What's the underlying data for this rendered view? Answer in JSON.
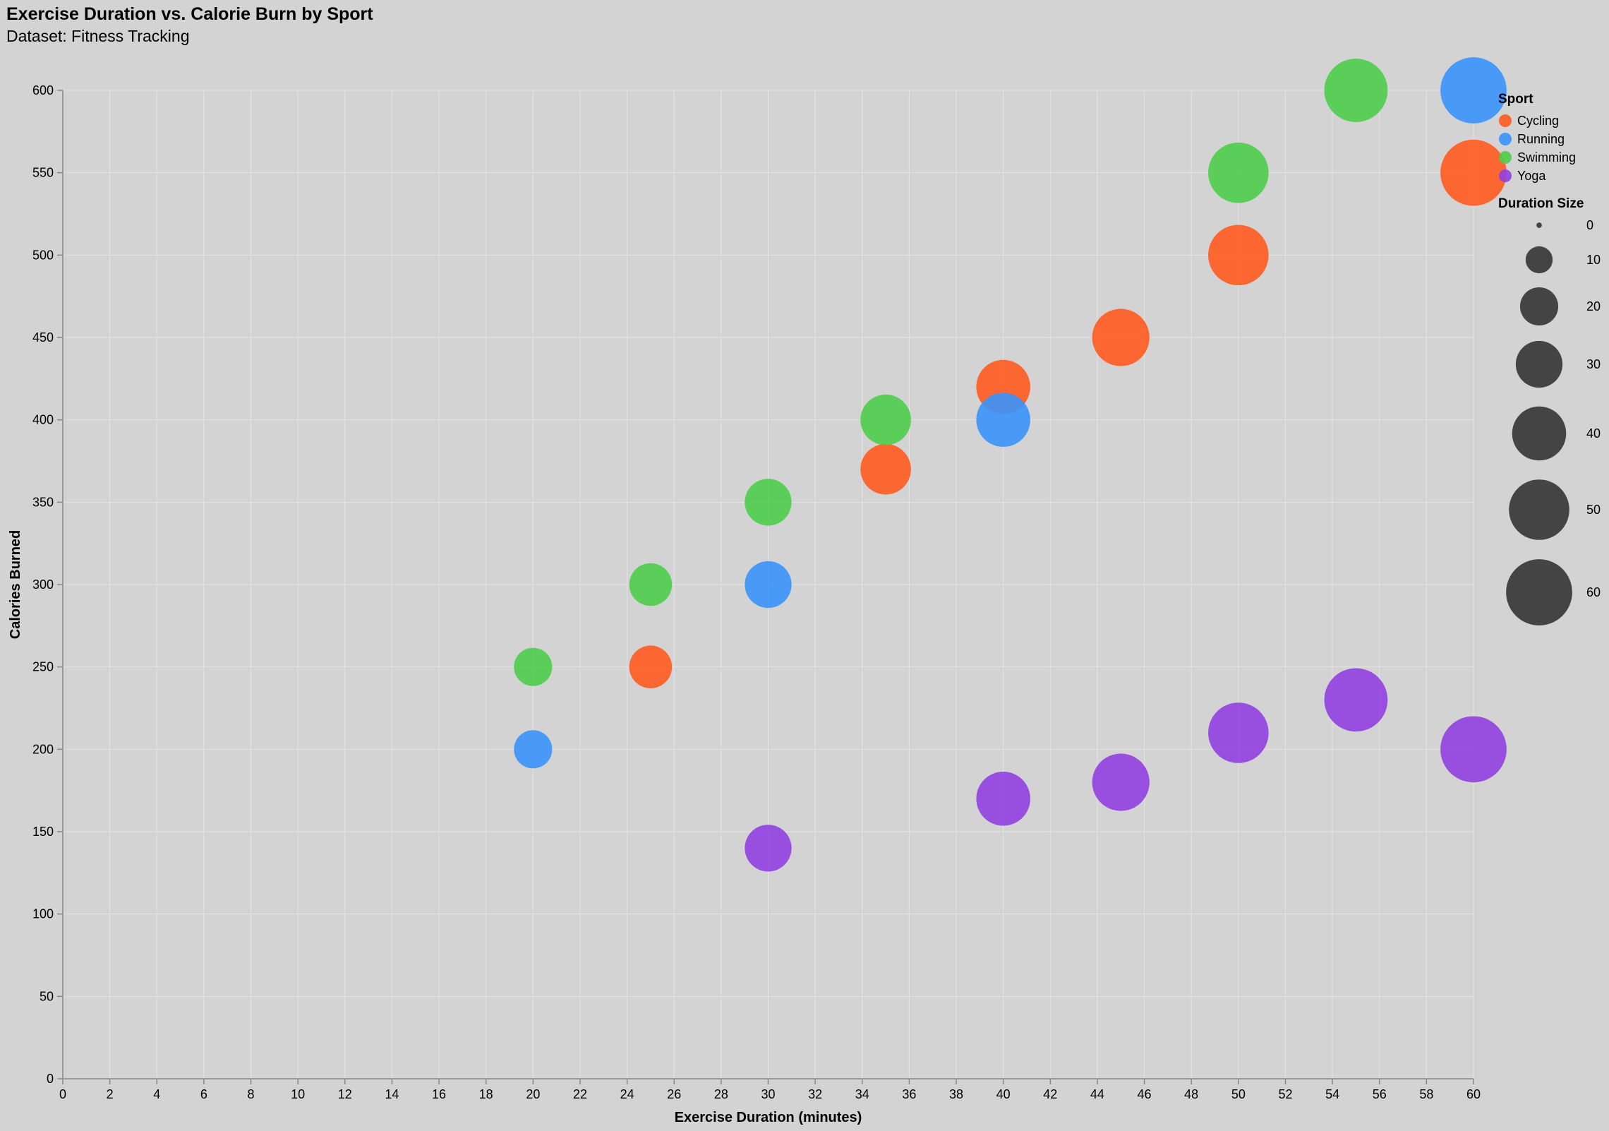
{
  "chart_data": {
    "type": "scatter",
    "title": "Exercise Duration vs. Calorie Burn by Sport",
    "subtitle": "Dataset: Fitness Tracking",
    "xlabel": "Exercise Duration (minutes)",
    "ylabel": "Calories Burned",
    "xlim": [
      0,
      60
    ],
    "ylim": [
      0,
      600
    ],
    "x_ticks": [
      0,
      2,
      4,
      6,
      8,
      10,
      12,
      14,
      16,
      18,
      20,
      22,
      24,
      26,
      28,
      30,
      32,
      34,
      36,
      38,
      40,
      42,
      44,
      46,
      48,
      50,
      52,
      54,
      56,
      58,
      60
    ],
    "y_ticks": [
      0,
      50,
      100,
      150,
      200,
      250,
      300,
      350,
      400,
      450,
      500,
      550,
      600
    ],
    "grid": true,
    "legend_position": "right",
    "color_legend_title": "Sport",
    "size_legend_title": "Duration Size",
    "size_legend_values": [
      0,
      10,
      20,
      30,
      40,
      50,
      60
    ],
    "series": [
      {
        "name": "Cycling",
        "color": "#ff5a1f",
        "points": [
          {
            "x": 25,
            "y": 250,
            "size": 25
          },
          {
            "x": 35,
            "y": 370,
            "size": 35
          },
          {
            "x": 40,
            "y": 420,
            "size": 40
          },
          {
            "x": 45,
            "y": 450,
            "size": 45
          },
          {
            "x": 50,
            "y": 500,
            "size": 50
          },
          {
            "x": 60,
            "y": 550,
            "size": 60
          }
        ]
      },
      {
        "name": "Running",
        "color": "#3a92fb",
        "points": [
          {
            "x": 20,
            "y": 200,
            "size": 20
          },
          {
            "x": 30,
            "y": 300,
            "size": 30
          },
          {
            "x": 40,
            "y": 400,
            "size": 40
          },
          {
            "x": 60,
            "y": 600,
            "size": 60
          }
        ]
      },
      {
        "name": "Swimming",
        "color": "#4ccd4a",
        "points": [
          {
            "x": 20,
            "y": 250,
            "size": 20
          },
          {
            "x": 25,
            "y": 300,
            "size": 25
          },
          {
            "x": 30,
            "y": 350,
            "size": 30
          },
          {
            "x": 35,
            "y": 400,
            "size": 35
          },
          {
            "x": 50,
            "y": 550,
            "size": 50
          },
          {
            "x": 55,
            "y": 600,
            "size": 55
          }
        ]
      },
      {
        "name": "Yoga",
        "color": "#9140e0",
        "points": [
          {
            "x": 30,
            "y": 140,
            "size": 30
          },
          {
            "x": 40,
            "y": 170,
            "size": 40
          },
          {
            "x": 45,
            "y": 180,
            "size": 45
          },
          {
            "x": 50,
            "y": 210,
            "size": 50
          },
          {
            "x": 55,
            "y": 230,
            "size": 55
          },
          {
            "x": 60,
            "y": 200,
            "size": 60
          }
        ]
      }
    ]
  }
}
